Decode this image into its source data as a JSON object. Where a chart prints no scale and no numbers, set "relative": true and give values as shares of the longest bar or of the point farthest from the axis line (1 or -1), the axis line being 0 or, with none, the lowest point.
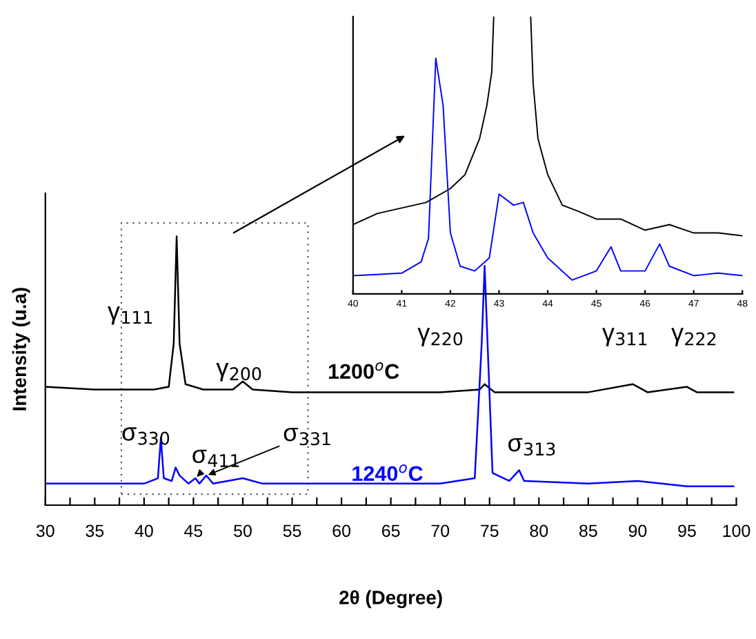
{
  "chart_data": [
    {
      "type": "line",
      "xlabel": "2θ (Degree)",
      "ylabel": "Intensity (u.a)",
      "relative": true,
      "tick_labels": "x",
      "grid": false,
      "legend": false,
      "xlim": [
        30,
        100
      ],
      "xticks": [
        30,
        {
          "value": 32.5,
          "label": null
        },
        35,
        {
          "value": 37.5,
          "label": null
        },
        40,
        {
          "value": 42.5,
          "label": null
        },
        45,
        {
          "value": 47.5,
          "label": null
        },
        50,
        {
          "value": 52.5,
          "label": null
        },
        55,
        {
          "value": 57.5,
          "label": null
        },
        60,
        {
          "value": 62.5,
          "label": null
        },
        65,
        {
          "value": 67.5,
          "label": null
        },
        70,
        {
          "value": 72.5,
          "label": null
        },
        75,
        {
          "value": 77.5,
          "label": null
        },
        80,
        {
          "value": 82.5,
          "label": null
        },
        85,
        {
          "value": 87.5,
          "label": null
        },
        90,
        {
          "value": 92.5,
          "label": null
        },
        95,
        {
          "value": 97.5,
          "label": null
        },
        100
      ],
      "series": [
        {
          "name": "1200$^{o}$C",
          "color": "#000000",
          "x": [
            30,
            35,
            38,
            41,
            42.5,
            43.0,
            43.3,
            43.6,
            44.2,
            46,
            49,
            50,
            51,
            55,
            60,
            65,
            70,
            74,
            74.5,
            75.5,
            80,
            85,
            89.5,
            91,
            95,
            96,
            99.7
          ],
          "values": [
            0.44,
            0.43,
            0.43,
            0.43,
            0.44,
            0.6,
            1.0,
            0.6,
            0.45,
            0.43,
            0.43,
            0.46,
            0.43,
            0.42,
            0.42,
            0.42,
            0.42,
            0.43,
            0.45,
            0.42,
            0.42,
            0.42,
            0.45,
            0.42,
            0.44,
            0.42,
            0.42
          ]
        },
        {
          "name": "1240$^{o}$C",
          "color": "#0000ff",
          "x": [
            30,
            35,
            40,
            41.4,
            41.7,
            42,
            42.8,
            43.2,
            43.6,
            44.5,
            45.2,
            45.6,
            46.3,
            47,
            50,
            52,
            60,
            70,
            73.5,
            74.2,
            74.5,
            74.8,
            75.3,
            77,
            78,
            78.5,
            85,
            90,
            95,
            99.7
          ],
          "values": [
            0.08,
            0.08,
            0.08,
            0.1,
            0.25,
            0.1,
            0.09,
            0.14,
            0.11,
            0.08,
            0.1,
            0.08,
            0.11,
            0.08,
            0.1,
            0.08,
            0.08,
            0.08,
            0.1,
            0.6,
            0.89,
            0.6,
            0.12,
            0.09,
            0.13,
            0.09,
            0.08,
            0.09,
            0.07,
            0.07
          ]
        }
      ],
      "annotations": [
        "γ$_{111}$",
        "γ$_{200}$",
        "γ$_{220}$",
        "γ$_{311}$",
        "γ$_{222}$",
        "σ$_{330}$",
        {
          "text": "σ$_{411}$",
          "x": 45.2,
          "y": 0.1
        },
        {
          "text": "σ$_{331}$",
          "x": 46.3,
          "y": 0.11
        },
        "σ$_{313}$"
      ]
    },
    {
      "type": "line",
      "relative": true,
      "tick_labels": "x",
      "grid": false,
      "legend": false,
      "xlim": [
        40,
        48
      ],
      "xticks": [
        40,
        41,
        42,
        43,
        44,
        45,
        46,
        47,
        48
      ],
      "series": [
        {
          "color": "#000000",
          "x": [
            40,
            40.5,
            41,
            41.5,
            42,
            42.3,
            42.6,
            42.75,
            42.85,
            42.89,
            43.0,
            43.65,
            43.7,
            43.8,
            44.0,
            44.3,
            44.6,
            45,
            45.5,
            46,
            46.5,
            47,
            47.5,
            48
          ],
          "values": [
            0.25,
            0.29,
            0.31,
            0.33,
            0.38,
            0.43,
            0.56,
            0.68,
            0.8,
            1.0,
            null,
            1.0,
            0.76,
            0.56,
            0.43,
            0.32,
            0.3,
            0.27,
            0.27,
            0.23,
            0.25,
            0.22,
            0.22,
            0.21
          ]
        },
        {
          "color": "#0000ff",
          "x": [
            40,
            40.5,
            41,
            41.4,
            41.55,
            41.7,
            41.85,
            42.0,
            42.2,
            42.5,
            42.8,
            43.0,
            43.3,
            43.5,
            43.7,
            44,
            44.5,
            45,
            45.3,
            45.5,
            46,
            46.3,
            46.5,
            47,
            47.5,
            48
          ],
          "values": [
            0.066,
            0.07,
            0.075,
            0.116,
            0.2,
            0.85,
            0.68,
            0.22,
            0.1,
            0.083,
            0.13,
            0.36,
            0.32,
            0.33,
            0.22,
            0.13,
            0.05,
            0.083,
            0.17,
            0.083,
            0.083,
            0.18,
            0.1,
            0.066,
            0.075,
            0.066
          ]
        }
      ]
    }
  ]
}
